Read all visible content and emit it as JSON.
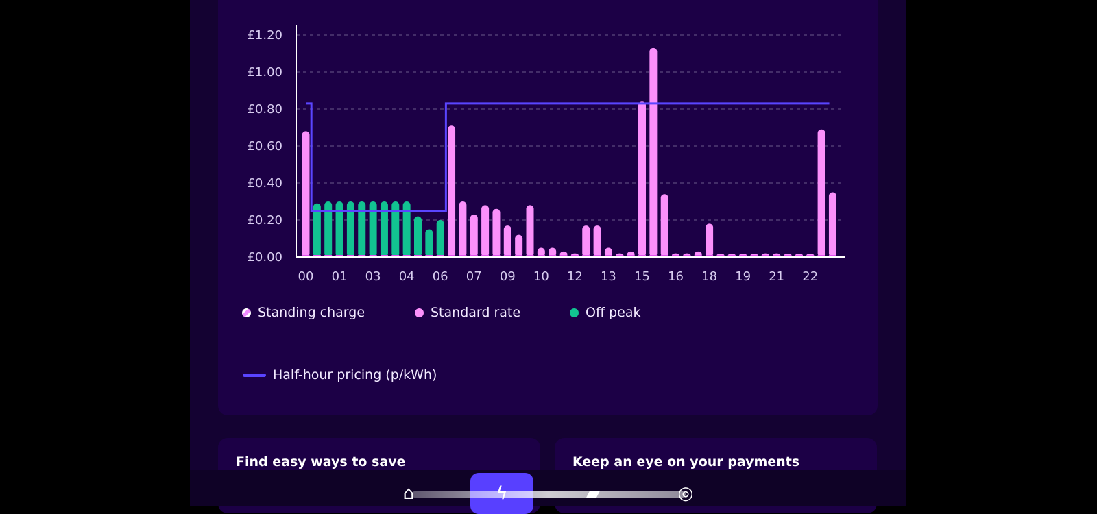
{
  "chart_data": {
    "type": "bar",
    "title": "",
    "ylabel": "",
    "xlabel": "",
    "ylim": [
      0,
      1.2
    ],
    "yticks": [
      "£0.00",
      "£0.20",
      "£0.40",
      "£0.60",
      "£0.80",
      "£1.00",
      "£1.20"
    ],
    "ytick_values": [
      0,
      0.2,
      0.4,
      0.6,
      0.8,
      1.0,
      1.2
    ],
    "xtick_labels": [
      "00",
      "01",
      "03",
      "04",
      "06",
      "07",
      "09",
      "10",
      "12",
      "13",
      "15",
      "16",
      "18",
      "19",
      "21",
      "22"
    ],
    "xtick_every": 3,
    "grid": true,
    "values": [
      0.68,
      0.29,
      0.3,
      0.3,
      0.3,
      0.3,
      0.3,
      0.3,
      0.3,
      0.3,
      0.22,
      0.15,
      0.2,
      0.71,
      0.3,
      0.23,
      0.28,
      0.26,
      0.17,
      0.12,
      0.28,
      0.05,
      0.05,
      0.03,
      0.02,
      0.17,
      0.17,
      0.05,
      0.02,
      0.03,
      0.84,
      1.13,
      0.34,
      0.02,
      0.02,
      0.03,
      0.18,
      0.01,
      0.01,
      0.01,
      0.01,
      0.02,
      0.02,
      0.01,
      0.01,
      0.01,
      0.69,
      0.35
    ],
    "rate_type": [
      "standard",
      "offpeak",
      "offpeak",
      "offpeak",
      "offpeak",
      "offpeak",
      "offpeak",
      "offpeak",
      "offpeak",
      "offpeak",
      "offpeak",
      "offpeak",
      "offpeak",
      "standard",
      "standard",
      "standard",
      "standard",
      "standard",
      "standard",
      "standard",
      "standard",
      "standard",
      "standard",
      "standard",
      "standard",
      "standard",
      "standard",
      "standard",
      "standard",
      "standard",
      "standard",
      "standard",
      "standard",
      "standard",
      "standard",
      "standard",
      "standard",
      "standard",
      "standard",
      "standard",
      "standard",
      "standard",
      "standard",
      "standard",
      "standard",
      "standard",
      "standard",
      "standard"
    ],
    "pricing_line": {
      "name": "Half-hour pricing (p/kWh)",
      "values_by_halfhour": [
        0.83,
        0.25,
        0.25,
        0.25,
        0.25,
        0.25,
        0.25,
        0.25,
        0.25,
        0.25,
        0.25,
        0.25,
        0.25,
        0.83,
        0.83,
        0.83,
        0.83,
        0.83,
        0.83,
        0.83,
        0.83,
        0.83,
        0.83,
        0.83,
        0.83,
        0.83,
        0.83,
        0.83,
        0.83,
        0.83,
        0.83,
        0.83,
        0.83,
        0.83,
        0.83,
        0.83,
        0.83,
        0.83,
        0.83,
        0.83,
        0.83,
        0.83,
        0.83,
        0.83,
        0.83,
        0.83,
        0.83,
        0.83
      ]
    },
    "legend": [
      {
        "key": "standing",
        "label": "Standing charge"
      },
      {
        "key": "standard",
        "label": "Standard rate"
      },
      {
        "key": "offpeak",
        "label": "Off peak"
      }
    ],
    "legend_placement": "bottom"
  },
  "colors": {
    "standard": "#fb90fb",
    "offpeak": "#12c391",
    "line": "#5a45ff",
    "axis": "#ffffff",
    "grid": "#6a5a8a",
    "tick": "#d8cdf0"
  },
  "cards": [
    {
      "title": "Find easy ways to save"
    },
    {
      "title": "Keep an eye on your payments"
    }
  ],
  "nav": [
    {
      "icon": "home-icon"
    },
    {
      "icon": "lightning-icon"
    },
    {
      "icon": "wallet-icon"
    },
    {
      "icon": "coin-icon"
    }
  ]
}
